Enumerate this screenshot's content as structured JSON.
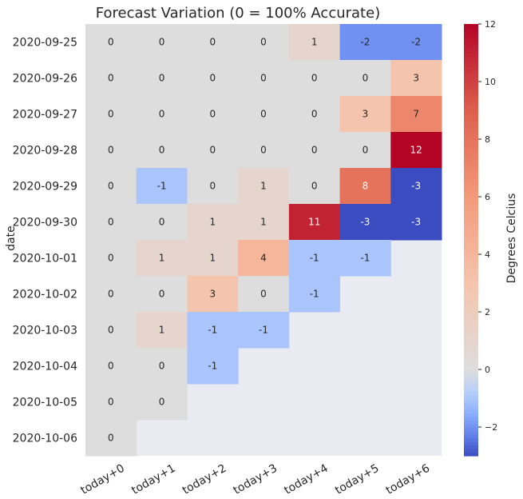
{
  "chart_data": {
    "type": "heatmap",
    "title": "Forecast Variation (0 = 100% Accurate)",
    "xlabel": "",
    "ylabel": "date",
    "x": [
      "today+0",
      "today+1",
      "today+2",
      "today+3",
      "today+4",
      "today+5",
      "today+6"
    ],
    "y": [
      "2020-09-25",
      "2020-09-26",
      "2020-09-27",
      "2020-09-28",
      "2020-09-29",
      "2020-09-30",
      "2020-10-01",
      "2020-10-02",
      "2020-10-03",
      "2020-10-04",
      "2020-10-05",
      "2020-10-06"
    ],
    "values": [
      [
        0,
        0,
        0,
        0,
        1,
        -2,
        -2
      ],
      [
        0,
        0,
        0,
        0,
        0,
        0,
        3
      ],
      [
        0,
        0,
        0,
        0,
        0,
        3,
        7
      ],
      [
        0,
        0,
        0,
        0,
        0,
        0,
        12
      ],
      [
        0,
        -1,
        0,
        1,
        0,
        8,
        -3
      ],
      [
        0,
        0,
        1,
        1,
        11,
        -3,
        -3
      ],
      [
        0,
        1,
        1,
        4,
        -1,
        -1,
        null
      ],
      [
        0,
        0,
        3,
        0,
        -1,
        null,
        null
      ],
      [
        0,
        1,
        -1,
        -1,
        null,
        null,
        null
      ],
      [
        0,
        0,
        -1,
        null,
        null,
        null,
        null
      ],
      [
        0,
        0,
        null,
        null,
        null,
        null,
        null
      ],
      [
        0,
        null,
        null,
        null,
        null,
        null,
        null
      ]
    ],
    "colorbar": {
      "label": "Degrees Celcius",
      "min": -3,
      "max": 12,
      "center": 0,
      "ticks": [
        -2,
        0,
        2,
        4,
        6,
        8,
        10,
        12
      ],
      "tick_labels": [
        "−2",
        "0",
        "2",
        "4",
        "6",
        "8",
        "10",
        "12"
      ],
      "colormap": "coolwarm"
    },
    "missing_color": "#eaeaf2",
    "grid": false
  }
}
